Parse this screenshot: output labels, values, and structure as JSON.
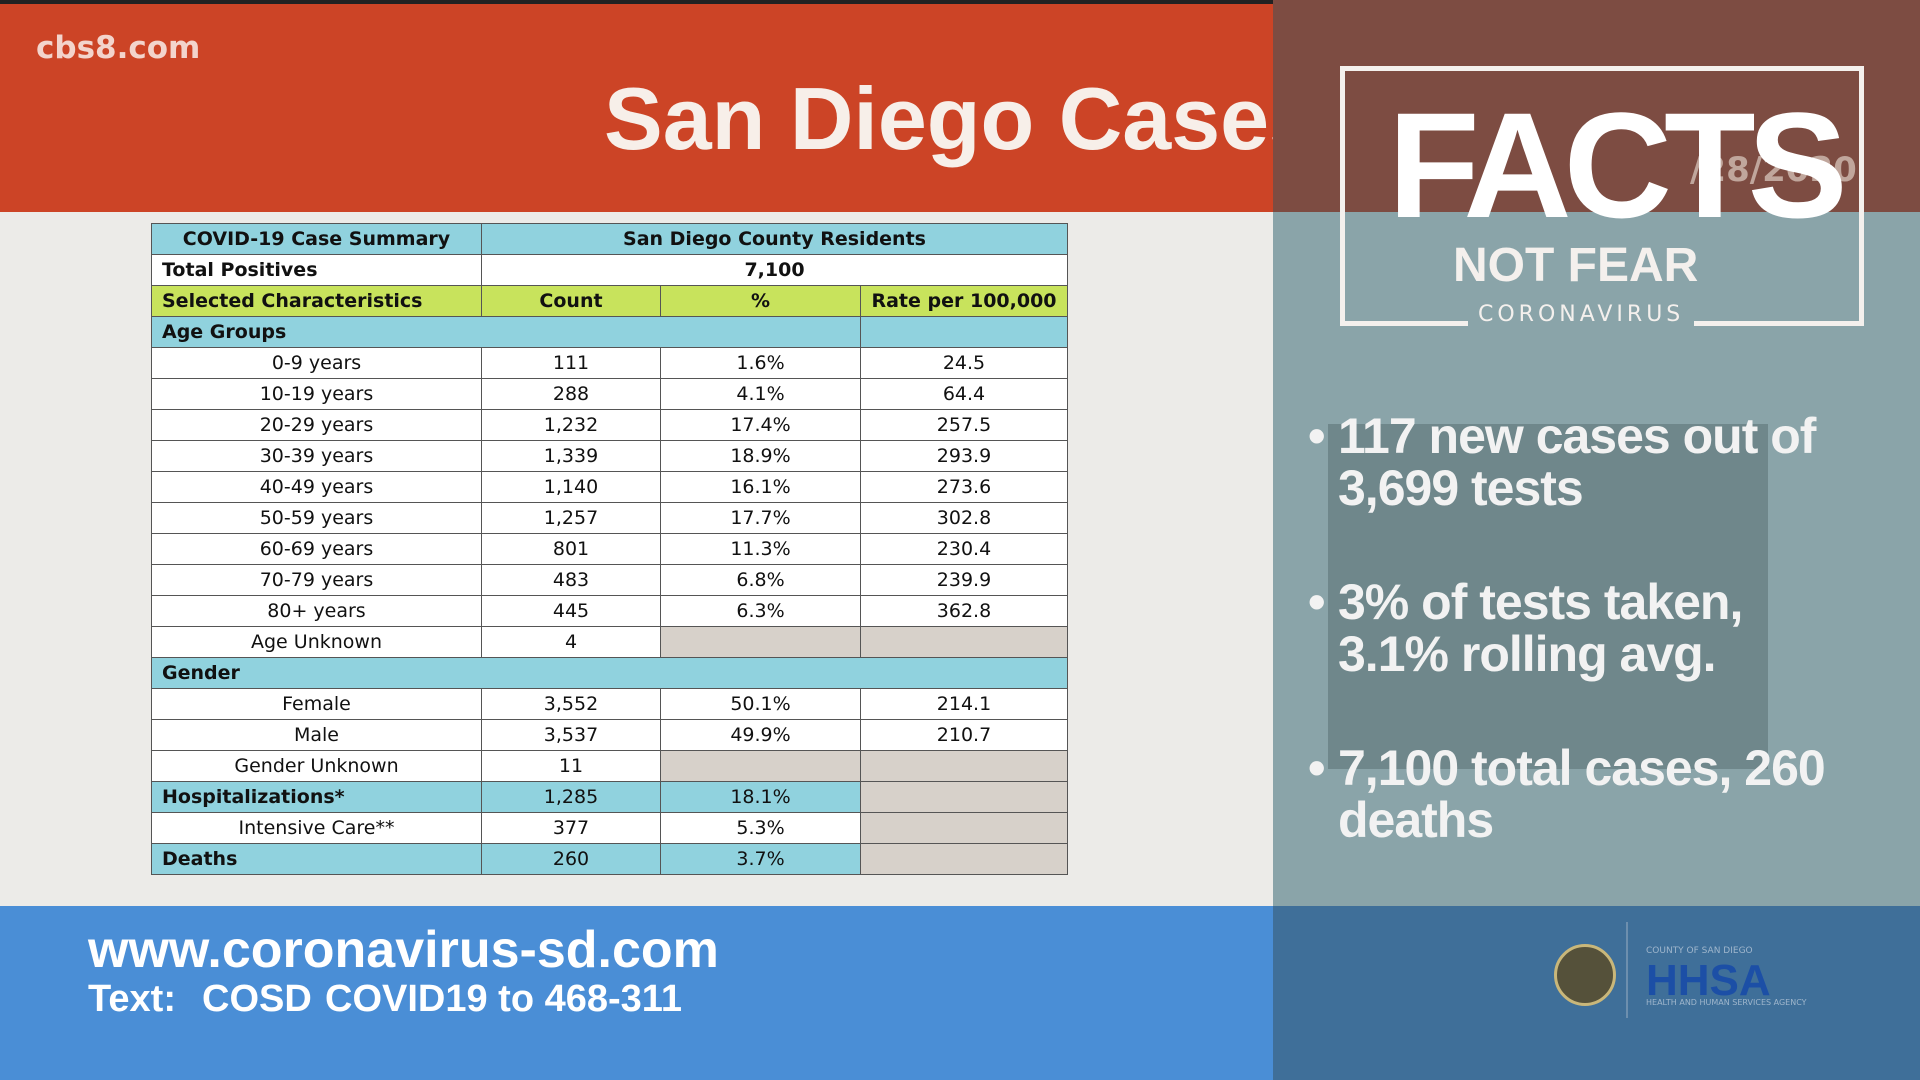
{
  "header": {
    "site": "cbs8.com",
    "title": "San Diego Cases"
  },
  "table": {
    "header": [
      "COVID-19 Case Summary",
      "San Diego County Residents"
    ],
    "total": [
      "Total Positives",
      "7,100"
    ],
    "columns": [
      "Selected Characteristics",
      "Count",
      "%",
      "Rate per 100,000"
    ],
    "age_title": "Age Groups",
    "age_rows": [
      [
        "0-9 years",
        "111",
        "1.6%",
        "24.5"
      ],
      [
        "10-19 years",
        "288",
        "4.1%",
        "64.4"
      ],
      [
        "20-29 years",
        "1,232",
        "17.4%",
        "257.5"
      ],
      [
        "30-39 years",
        "1,339",
        "18.9%",
        "293.9"
      ],
      [
        "40-49 years",
        "1,140",
        "16.1%",
        "273.6"
      ],
      [
        "50-59 years",
        "1,257",
        "17.7%",
        "302.8"
      ],
      [
        "60-69 years",
        "801",
        "11.3%",
        "230.4"
      ],
      [
        "70-79 years",
        "483",
        "6.8%",
        "239.9"
      ],
      [
        "80+ years",
        "445",
        "6.3%",
        "362.8"
      ],
      [
        "Age Unknown",
        "4"
      ]
    ],
    "gender_title": "Gender",
    "gender_rows": [
      [
        "Female",
        "3,552",
        "50.1%",
        "214.1"
      ],
      [
        "Male",
        "3,537",
        "49.9%",
        "210.7"
      ],
      [
        "Gender Unknown",
        "11"
      ]
    ],
    "hosp": [
      "Hospitalizations*",
      "1,285",
      "18.1%"
    ],
    "icu": [
      "Intensive Care**",
      "377",
      "5.3%"
    ],
    "deaths": [
      "Deaths",
      "260",
      "3.7%"
    ]
  },
  "panel": {
    "logo_big": "FACTS",
    "logo_sub": "NOT FEAR",
    "logo_small": "CORONAVIRUS",
    "date": "/28/2020",
    "bullets": [
      "117 new cases out of 3,699 tests",
      "3% of tests taken, 3.1% rolling avg.",
      "7,100 total cases, 260 deaths"
    ]
  },
  "footer": {
    "url": "www.coronavirus-sd.com",
    "text_label": "Text:",
    "keyword": "COSD",
    "sms": "COVID19 to 468-311",
    "agency_top": "COUNTY OF SAN DIEGO",
    "agency": "HHSA",
    "agency_sub": "HEALTH AND HUMAN SERVICES AGENCY"
  }
}
